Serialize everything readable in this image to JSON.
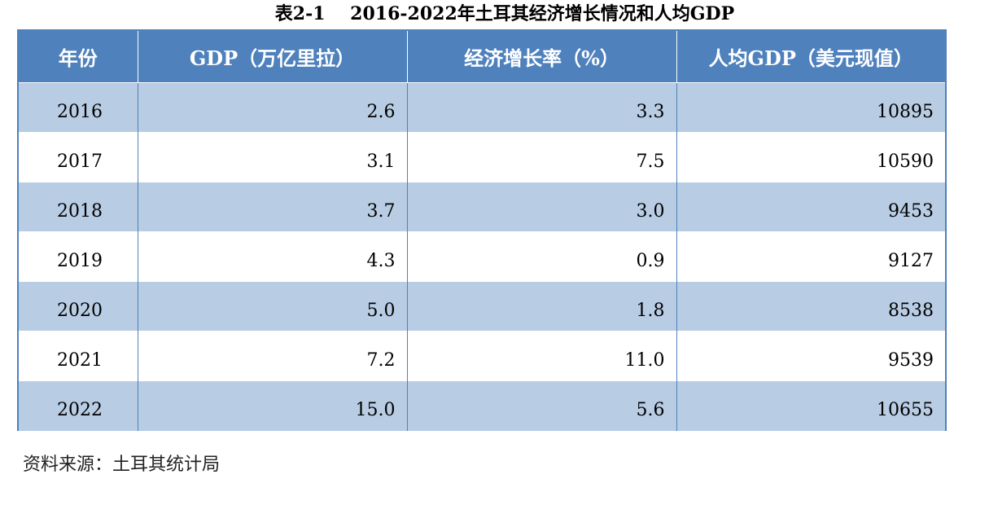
{
  "title": "表2-1    2016-2022年土耳其经济增长情况和人均GDP",
  "headers": [
    "年份",
    "GDP（万亿里拉）",
    "经济增长率（%）",
    "人均GDP（美元现值）"
  ],
  "rows": [
    {
      "year": "2016",
      "gdp": "2.6",
      "growth": "3.3",
      "per_capita": "10895"
    },
    {
      "year": "2017",
      "gdp": "3.1",
      "growth": "7.5",
      "per_capita": "10590"
    },
    {
      "year": "2018",
      "gdp": "3.7",
      "growth": "3.0",
      "per_capita": "9453"
    },
    {
      "year": "2019",
      "gdp": "4.3",
      "growth": "0.9",
      "per_capita": "9127"
    },
    {
      "year": "2020",
      "gdp": "5.0",
      "growth": "1.8",
      "per_capita": "8538"
    },
    {
      "year": "2021",
      "gdp": "7.2",
      "growth": "11.0",
      "per_capita": "9539"
    },
    {
      "year": "2022",
      "gdp": "15.0",
      "growth": "5.6",
      "per_capita": "10655"
    }
  ],
  "source": "资料来源：土耳其统计局",
  "colors": {
    "header_bg": "#4f81bd",
    "shaded_row_bg": "#b8cce4",
    "plain_row_bg": "#ffffff"
  }
}
